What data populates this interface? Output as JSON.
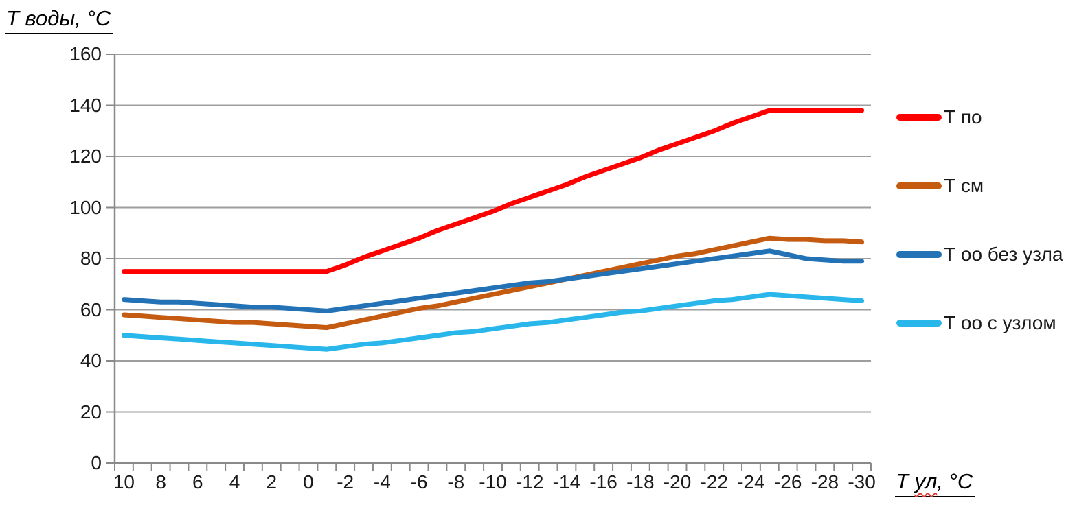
{
  "y_axis": {
    "title": "Т воды, °С",
    "tick_labels": [
      "160",
      "140",
      "120",
      "100",
      "80",
      "60",
      "40",
      "20",
      "0"
    ]
  },
  "x_axis": {
    "title": "Т ул, °С",
    "title_parts": {
      "pre": "Т ",
      "misspelled": "ул",
      "post": ", °С"
    },
    "tick_labels": [
      "10",
      "8",
      "6",
      "4",
      "2",
      "0",
      "-2",
      "-4",
      "-6",
      "-8",
      "-10",
      "-12",
      "-14",
      "-16",
      "-18",
      "-20",
      "-22",
      "-24",
      "-26",
      "-28",
      "-30"
    ]
  },
  "legend": {
    "items": [
      {
        "label": "Т по",
        "color": "#FF0000"
      },
      {
        "label": "Т см",
        "color": "#C55A11"
      },
      {
        "label": "Т оо без узла",
        "color": "#2272B5"
      },
      {
        "label": "Т оо с узлом",
        "color": "#29B6EA"
      }
    ]
  },
  "colors": {
    "gridline": "#9E9E9E",
    "axis": "#8A8A8A",
    "text": "#1A1A1A",
    "red_series": "#FF0000",
    "brown_series": "#C55A11",
    "blue_series": "#2272B5",
    "cyan_series": "#29B6EA"
  },
  "chart_data": {
    "type": "line",
    "title": "",
    "xlabel": "Т ул, °С",
    "ylabel": "Т воды, °С",
    "ylim": [
      0,
      160
    ],
    "ytick_step": 20,
    "xticks": [
      10,
      8,
      6,
      4,
      2,
      0,
      -2,
      -4,
      -6,
      -8,
      -10,
      -12,
      -14,
      -16,
      -18,
      -20,
      -22,
      -24,
      -26,
      -28,
      -30
    ],
    "x_label_interval": 2,
    "grid": "horizontal-only",
    "legend_position": "right",
    "x": [
      10,
      9,
      8,
      7,
      6,
      5,
      4,
      3,
      2,
      1,
      0,
      -1,
      -2,
      -3,
      -4,
      -5,
      -6,
      -7,
      -8,
      -9,
      -10,
      -11,
      -12,
      -13,
      -14,
      -15,
      -16,
      -17,
      -18,
      -19,
      -20,
      -21,
      -22,
      -23,
      -24,
      -25,
      -26,
      -27,
      -28,
      -29,
      -30
    ],
    "series": [
      {
        "name": "Т по",
        "color": "#FF0000",
        "values": [
          75,
          75,
          75,
          75,
          75,
          75,
          75,
          75,
          75,
          75,
          75,
          75,
          77.5,
          80.5,
          83,
          85.5,
          88,
          91,
          93.5,
          96,
          98.5,
          101.5,
          104,
          106.5,
          109,
          112,
          114.5,
          117,
          119.5,
          122.5,
          125,
          127.5,
          130,
          133,
          135.5,
          138,
          138,
          138,
          138,
          138,
          138
        ]
      },
      {
        "name": "Т см",
        "color": "#C55A11",
        "values": [
          58,
          57.5,
          57,
          56.5,
          56,
          55.5,
          55,
          55,
          54.5,
          54,
          53.5,
          53,
          54.5,
          56,
          57.5,
          59,
          60.5,
          61.5,
          63,
          64.5,
          66,
          67.5,
          69,
          70.5,
          72,
          73.5,
          75,
          76.5,
          78,
          79.5,
          81,
          82,
          83.5,
          85,
          86.5,
          88,
          87.5,
          87.5,
          87,
          87,
          86.5
        ]
      },
      {
        "name": "Т оо без узла",
        "color": "#2272B5",
        "values": [
          64,
          63.5,
          63,
          63,
          62.5,
          62,
          61.5,
          61,
          61,
          60.5,
          60,
          59.5,
          60.5,
          61.5,
          62.5,
          63.5,
          64.5,
          65.5,
          66.5,
          67.5,
          68.5,
          69.5,
          70.5,
          71,
          72,
          73,
          74,
          75,
          76,
          77,
          78,
          79,
          80,
          81,
          82,
          83,
          81.5,
          80,
          79.5,
          79,
          79
        ]
      },
      {
        "name": "Т оо с узлом",
        "color": "#29B6EA",
        "values": [
          50,
          49.5,
          49,
          48.5,
          48,
          47.5,
          47,
          46.5,
          46,
          45.5,
          45,
          44.5,
          45.5,
          46.5,
          47,
          48,
          49,
          50,
          51,
          51.5,
          52.5,
          53.5,
          54.5,
          55,
          56,
          57,
          58,
          59,
          59.5,
          60.5,
          61.5,
          62.5,
          63.5,
          64,
          65,
          66,
          65.5,
          65,
          64.5,
          64,
          63.5
        ]
      }
    ]
  }
}
